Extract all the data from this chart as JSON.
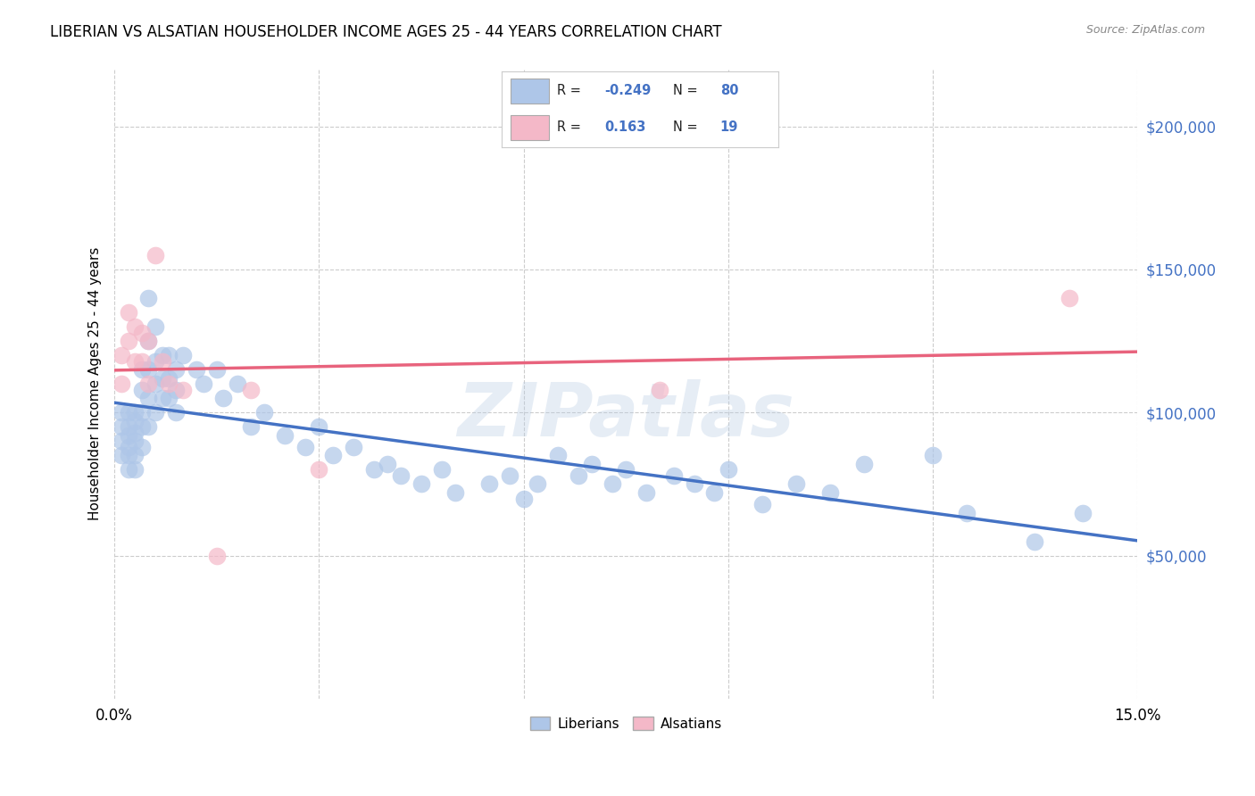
{
  "title": "LIBERIAN VS ALSATIAN HOUSEHOLDER INCOME AGES 25 - 44 YEARS CORRELATION CHART",
  "source": "Source: ZipAtlas.com",
  "ylabel": "Householder Income Ages 25 - 44 years",
  "xlim": [
    0.0,
    0.15
  ],
  "ylim": [
    0,
    220000
  ],
  "yticks": [
    50000,
    100000,
    150000,
    200000
  ],
  "ytick_labels": [
    "$50,000",
    "$100,000",
    "$150,000",
    "$200,000"
  ],
  "xtick_positions": [
    0.0,
    0.03,
    0.06,
    0.09,
    0.12,
    0.15
  ],
  "xtick_labels": [
    "0.0%",
    "",
    "",
    "",
    "",
    "15.0%"
  ],
  "liberian_R": -0.249,
  "liberian_N": 80,
  "alsatian_R": 0.163,
  "alsatian_N": 19,
  "liberian_color": "#aec6e8",
  "alsatian_color": "#f4b8c8",
  "liberian_line_color": "#4472c4",
  "alsatian_line_color": "#e8637d",
  "watermark": "ZIPatlas",
  "background_color": "#ffffff",
  "liberian_x": [
    0.001,
    0.001,
    0.001,
    0.001,
    0.002,
    0.002,
    0.002,
    0.002,
    0.002,
    0.002,
    0.003,
    0.003,
    0.003,
    0.003,
    0.003,
    0.003,
    0.004,
    0.004,
    0.004,
    0.004,
    0.004,
    0.005,
    0.005,
    0.005,
    0.005,
    0.005,
    0.006,
    0.006,
    0.006,
    0.006,
    0.007,
    0.007,
    0.007,
    0.008,
    0.008,
    0.008,
    0.009,
    0.009,
    0.009,
    0.01,
    0.012,
    0.013,
    0.015,
    0.016,
    0.018,
    0.02,
    0.022,
    0.025,
    0.028,
    0.03,
    0.032,
    0.035,
    0.038,
    0.04,
    0.042,
    0.045,
    0.048,
    0.05,
    0.055,
    0.058,
    0.06,
    0.062,
    0.065,
    0.068,
    0.07,
    0.073,
    0.075,
    0.078,
    0.082,
    0.085,
    0.088,
    0.09,
    0.095,
    0.1,
    0.105,
    0.11,
    0.12,
    0.125,
    0.135,
    0.142
  ],
  "liberian_y": [
    100000,
    95000,
    90000,
    85000,
    100000,
    95000,
    92000,
    88000,
    85000,
    80000,
    100000,
    97000,
    93000,
    90000,
    85000,
    80000,
    115000,
    108000,
    100000,
    95000,
    88000,
    140000,
    125000,
    115000,
    105000,
    95000,
    130000,
    118000,
    110000,
    100000,
    120000,
    112000,
    105000,
    120000,
    112000,
    105000,
    115000,
    108000,
    100000,
    120000,
    115000,
    110000,
    115000,
    105000,
    110000,
    95000,
    100000,
    92000,
    88000,
    95000,
    85000,
    88000,
    80000,
    82000,
    78000,
    75000,
    80000,
    72000,
    75000,
    78000,
    70000,
    75000,
    85000,
    78000,
    82000,
    75000,
    80000,
    72000,
    78000,
    75000,
    72000,
    80000,
    68000,
    75000,
    72000,
    82000,
    85000,
    65000,
    55000,
    65000
  ],
  "alsatian_x": [
    0.001,
    0.001,
    0.002,
    0.002,
    0.003,
    0.003,
    0.004,
    0.004,
    0.005,
    0.005,
    0.006,
    0.007,
    0.008,
    0.01,
    0.015,
    0.02,
    0.03,
    0.08,
    0.14
  ],
  "alsatian_y": [
    120000,
    110000,
    135000,
    125000,
    130000,
    118000,
    128000,
    118000,
    125000,
    110000,
    155000,
    118000,
    110000,
    108000,
    50000,
    108000,
    80000,
    108000,
    140000
  ],
  "legend_R1_label": "R = -0.249   N = 80",
  "legend_R2_label": "R =  0.163   N = 19"
}
